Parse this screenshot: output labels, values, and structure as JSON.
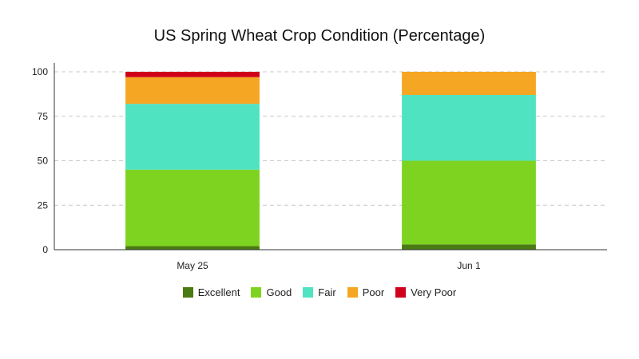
{
  "chart_data": {
    "type": "bar",
    "stacked": true,
    "title": "US Spring Wheat Crop Condition (Percentage)",
    "xlabel": "",
    "ylabel": "",
    "categories": [
      "May 25",
      "Jun 1"
    ],
    "ylim": [
      0,
      100
    ],
    "yticks": [
      0,
      25,
      50,
      75,
      100
    ],
    "grid": true,
    "legend_position": "bottom",
    "series": [
      {
        "name": "Excellent",
        "color": "#4a7a12",
        "values": [
          2,
          3
        ]
      },
      {
        "name": "Good",
        "color": "#7ed321",
        "values": [
          43,
          47
        ]
      },
      {
        "name": "Fair",
        "color": "#50e3c2",
        "values": [
          37,
          37
        ]
      },
      {
        "name": "Poor",
        "color": "#f5a623",
        "values": [
          15,
          13
        ]
      },
      {
        "name": "Very Poor",
        "color": "#d0021b",
        "values": [
          3,
          0
        ]
      }
    ]
  }
}
